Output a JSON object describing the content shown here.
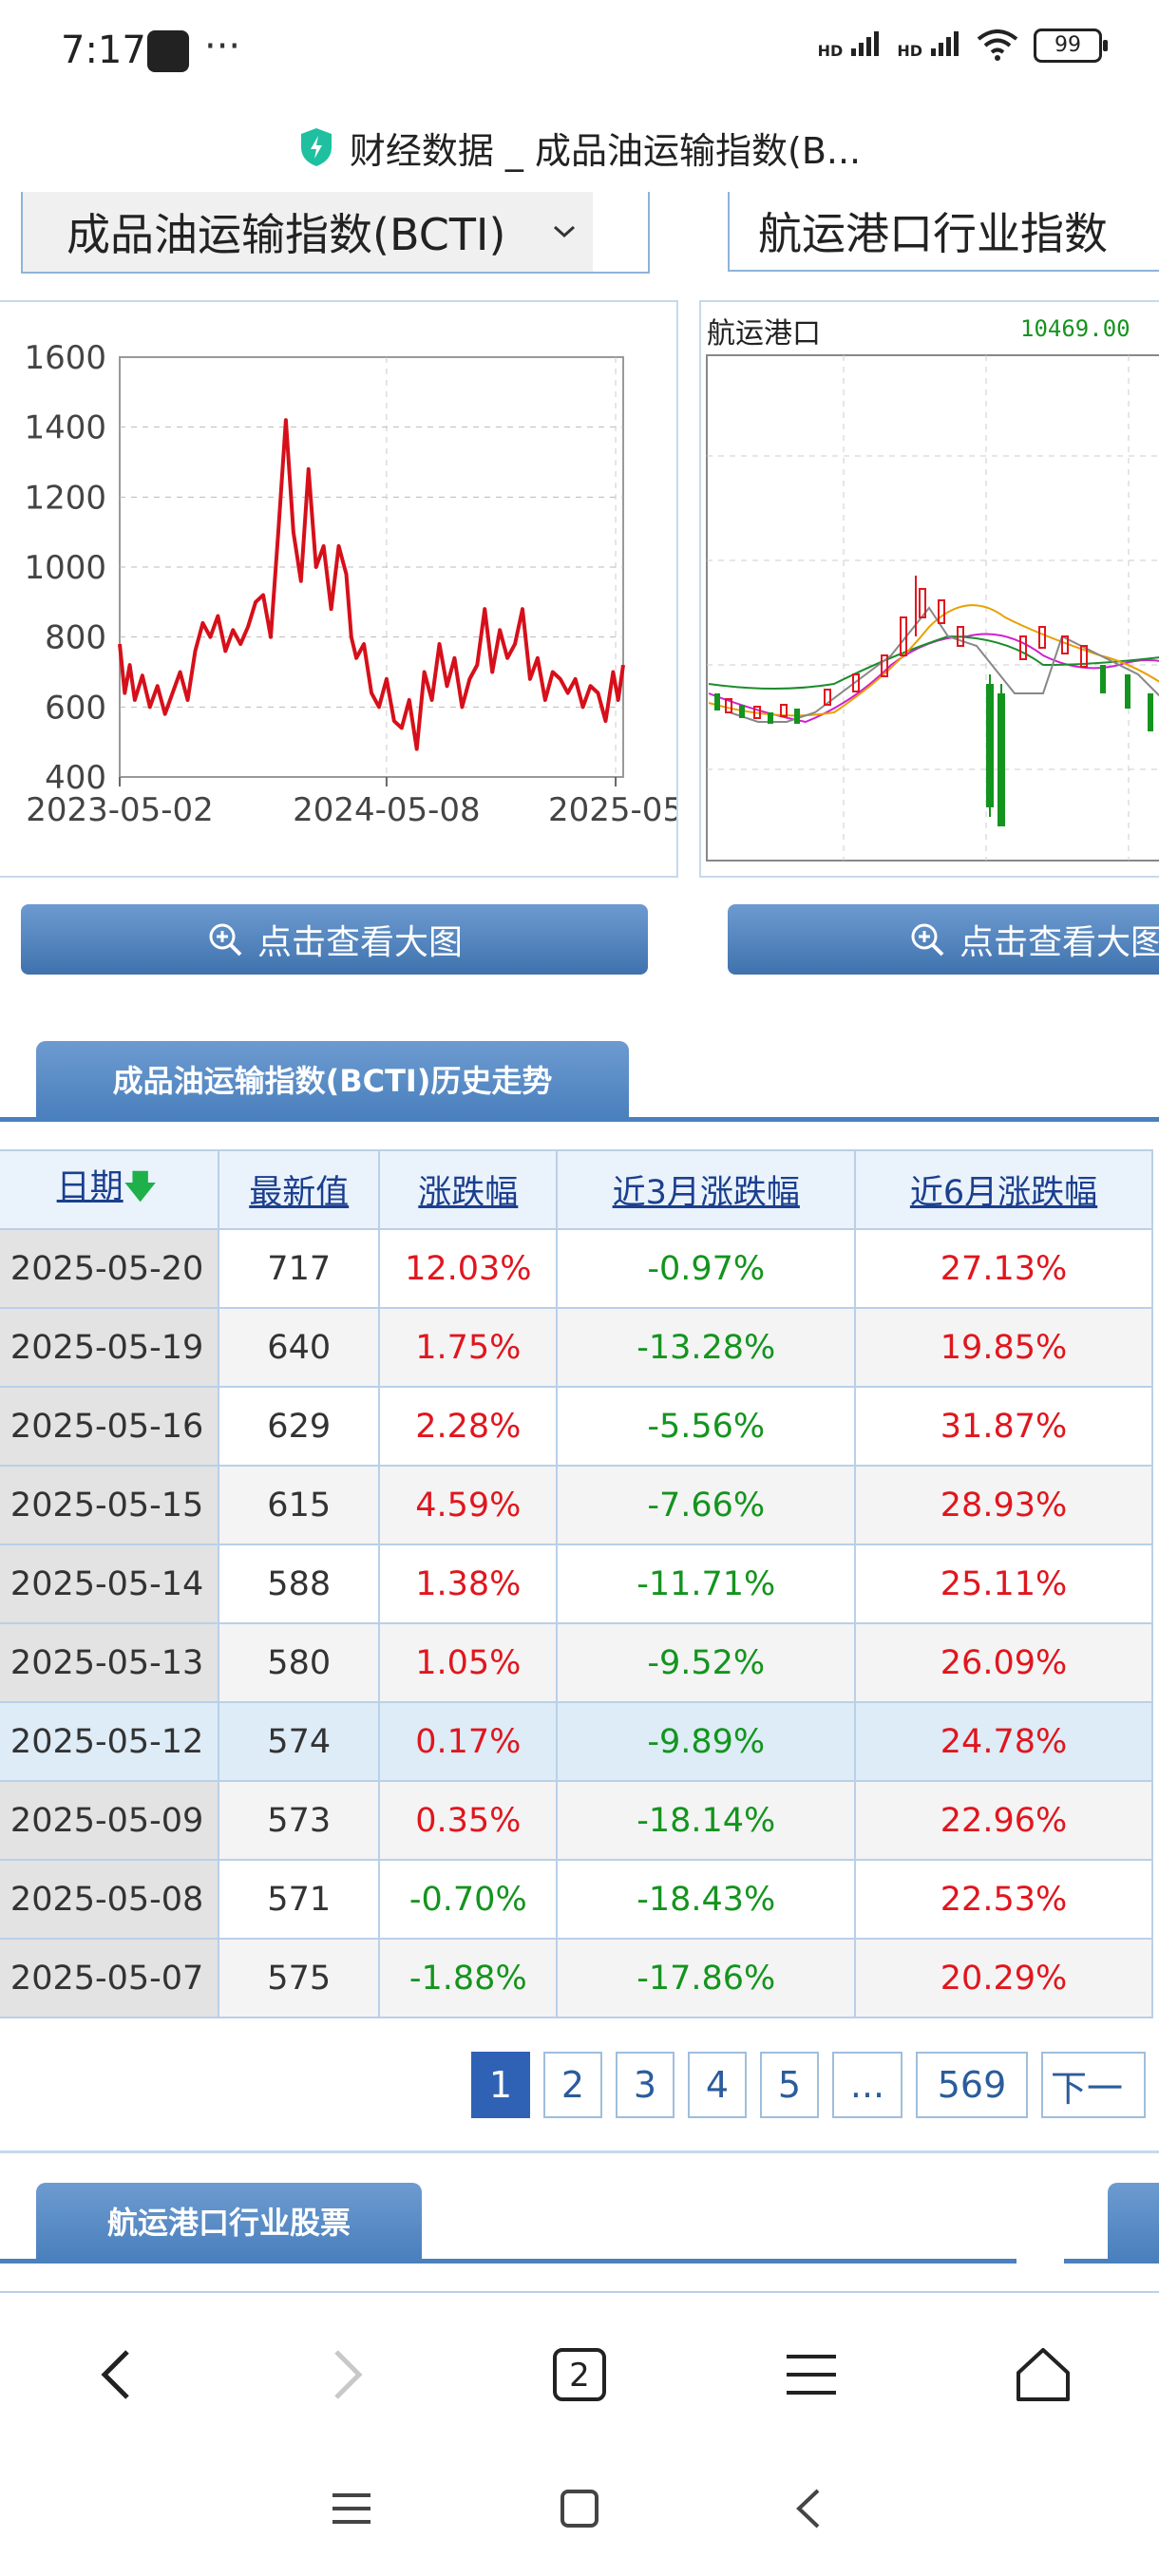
{
  "status": {
    "time": "7:17",
    "dots": "···",
    "net1": "HD",
    "net2": "HD",
    "battery": "99"
  },
  "titlebar": {
    "title": "财经数据 _ 成品油运输指数(B..."
  },
  "dropdowns": {
    "primary": "成品油运输指数(BCTI)",
    "secondary": "航运港口行业指数"
  },
  "chart2": {
    "name": "航运港口",
    "value": "10469.00"
  },
  "buttons": {
    "view_large_1": "点击查看大图",
    "view_large_2": "点击查看大图"
  },
  "section1": {
    "tab": "成品油运输指数(BCTI)历史走势"
  },
  "table": {
    "headers": {
      "date": "日期",
      "latest": "最新值",
      "change": "涨跌幅",
      "change3m": "近3月涨跌幅",
      "change6m": "近6月涨跌幅"
    },
    "rows": [
      {
        "date": "2025-05-20",
        "latest": "717",
        "change": "12.03%",
        "change3m": "-0.97%",
        "change6m": "27.13%"
      },
      {
        "date": "2025-05-19",
        "latest": "640",
        "change": "1.75%",
        "change3m": "-13.28%",
        "change6m": "19.85%"
      },
      {
        "date": "2025-05-16",
        "latest": "629",
        "change": "2.28%",
        "change3m": "-5.56%",
        "change6m": "31.87%"
      },
      {
        "date": "2025-05-15",
        "latest": "615",
        "change": "4.59%",
        "change3m": "-7.66%",
        "change6m": "28.93%"
      },
      {
        "date": "2025-05-14",
        "latest": "588",
        "change": "1.38%",
        "change3m": "-11.71%",
        "change6m": "25.11%"
      },
      {
        "date": "2025-05-13",
        "latest": "580",
        "change": "1.05%",
        "change3m": "-9.52%",
        "change6m": "26.09%"
      },
      {
        "date": "2025-05-12",
        "latest": "574",
        "change": "0.17%",
        "change3m": "-9.89%",
        "change6m": "24.78%"
      },
      {
        "date": "2025-05-09",
        "latest": "573",
        "change": "0.35%",
        "change3m": "-18.14%",
        "change6m": "22.96%"
      },
      {
        "date": "2025-05-08",
        "latest": "571",
        "change": "-0.70%",
        "change3m": "-18.43%",
        "change6m": "22.53%"
      },
      {
        "date": "2025-05-07",
        "latest": "575",
        "change": "-1.88%",
        "change3m": "-17.86%",
        "change6m": "20.29%"
      }
    ]
  },
  "pagination": {
    "pages": [
      "1",
      "2",
      "3",
      "4",
      "5",
      "...",
      "569"
    ],
    "next": "下一"
  },
  "section2": {
    "tab": "航运港口行业股票"
  },
  "colors": {
    "accent": "#4a80bd",
    "up": "#e0161e",
    "down": "#14941e",
    "line": "#d6101a"
  },
  "chart_data": {
    "type": "line",
    "ylim": [
      400,
      1600
    ],
    "yticks": [
      "1600",
      "1400",
      "1200",
      "1000",
      "800",
      "600",
      "400"
    ],
    "xticks": [
      "2023-05-02",
      "2024-05-08",
      "2025-05"
    ],
    "x": [
      0,
      0.01,
      0.02,
      0.03,
      0.045,
      0.06,
      0.075,
      0.09,
      0.105,
      0.12,
      0.135,
      0.15,
      0.165,
      0.18,
      0.195,
      0.21,
      0.225,
      0.24,
      0.255,
      0.27,
      0.285,
      0.3,
      0.315,
      0.33,
      0.345,
      0.36,
      0.375,
      0.39,
      0.405,
      0.42,
      0.435,
      0.45,
      0.46,
      0.47,
      0.485,
      0.5,
      0.515,
      0.53,
      0.545,
      0.56,
      0.575,
      0.59,
      0.605,
      0.62,
      0.635,
      0.65,
      0.665,
      0.68,
      0.695,
      0.71,
      0.725,
      0.74,
      0.755,
      0.77,
      0.785,
      0.8,
      0.815,
      0.83,
      0.845,
      0.86,
      0.875,
      0.89,
      0.905,
      0.92,
      0.935,
      0.95,
      0.965,
      0.98,
      0.99,
      1.0
    ],
    "values": [
      780,
      640,
      720,
      620,
      690,
      600,
      660,
      580,
      640,
      700,
      620,
      760,
      840,
      800,
      860,
      760,
      820,
      780,
      830,
      900,
      920,
      800,
      1100,
      1420,
      1100,
      960,
      1280,
      1000,
      1060,
      880,
      1060,
      980,
      800,
      740,
      780,
      640,
      600,
      680,
      560,
      540,
      620,
      480,
      700,
      620,
      780,
      660,
      740,
      600,
      680,
      720,
      880,
      700,
      820,
      740,
      780,
      880,
      680,
      740,
      620,
      700,
      680,
      640,
      680,
      600,
      660,
      640,
      560,
      700,
      620,
      720
    ]
  }
}
